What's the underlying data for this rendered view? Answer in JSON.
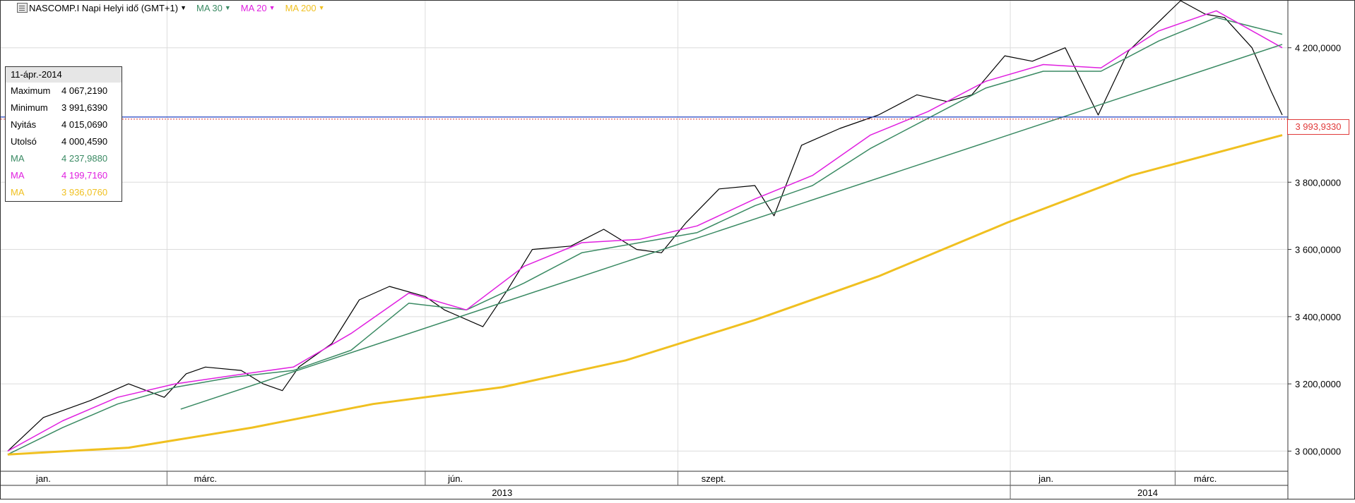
{
  "header": {
    "symbol": "NASCOMP.I Napi Helyi idő (GMT+1)",
    "indicators": [
      {
        "label": "MA 30",
        "color": "#3a8a63"
      },
      {
        "label": "MA 20",
        "color": "#e020e0"
      },
      {
        "label": "MA 200",
        "color": "#f0c020"
      }
    ]
  },
  "infobox": {
    "date": "11-ápr.-2014",
    "rows": [
      {
        "label": "Maximum",
        "value": "4 067,2190"
      },
      {
        "label": "Minimum",
        "value": "3 991,6390"
      },
      {
        "label": "Nyitás",
        "value": "4 015,0690"
      },
      {
        "label": "Utolsó",
        "value": "4 000,4590"
      },
      {
        "label": "MA",
        "value": "4 237,9880",
        "color": "#3a8a63"
      },
      {
        "label": "MA",
        "value": "4 199,7160",
        "color": "#e020e0"
      },
      {
        "label": "MA",
        "value": "3 936,0760",
        "color": "#f0c020"
      }
    ]
  },
  "last_price_label": "3 993,9330",
  "chart_data": {
    "type": "line",
    "y_axis": {
      "range": [
        2940,
        4340
      ],
      "ticks": [
        3000,
        3200,
        3400,
        3600,
        3800,
        4200
      ],
      "tick_labels": [
        "3 000,0000",
        "3 200,0000",
        "3 400,0000",
        "3 600,0000",
        "3 800,0000",
        "4 200,0000"
      ],
      "position": "right"
    },
    "x_axis": {
      "start": "2013-01-01",
      "end": "2014-04-11",
      "month_labels": [
        {
          "date": "2013-01-15",
          "label": "jan."
        },
        {
          "date": "2013-03-15",
          "label": "márc."
        },
        {
          "date": "2013-06-14",
          "label": "jún."
        },
        {
          "date": "2013-09-16",
          "label": "szept."
        },
        {
          "date": "2014-01-15",
          "label": "jan."
        },
        {
          "date": "2014-03-14",
          "label": "márc."
        }
      ],
      "year_labels": [
        {
          "date": "2013-07-01",
          "label": "2013"
        },
        {
          "date": "2014-02-21",
          "label": "2014"
        }
      ],
      "gridlines": [
        "2013-03-01",
        "2013-06-03",
        "2013-09-03",
        "2014-01-02",
        "2014-03-03"
      ]
    },
    "grid": true,
    "legend": "top-left",
    "series": [
      {
        "name": "NASCOMP.I",
        "color": "#000000",
        "x": [
          "2013-01-02",
          "2013-01-15",
          "2013-02-01",
          "2013-02-15",
          "2013-02-28",
          "2013-03-08",
          "2013-03-15",
          "2013-03-28",
          "2013-04-05",
          "2013-04-12",
          "2013-04-18",
          "2013-04-30",
          "2013-05-10",
          "2013-05-21",
          "2013-06-03",
          "2013-06-10",
          "2013-06-24",
          "2013-07-03",
          "2013-07-12",
          "2013-07-26",
          "2013-08-07",
          "2013-08-19",
          "2013-08-28",
          "2013-09-06",
          "2013-09-18",
          "2013-10-01",
          "2013-10-08",
          "2013-10-18",
          "2013-11-01",
          "2013-11-15",
          "2013-11-29",
          "2013-12-10",
          "2013-12-19",
          "2013-12-31",
          "2014-01-10",
          "2014-01-22",
          "2014-02-03",
          "2014-02-14",
          "2014-03-05",
          "2014-03-14",
          "2014-03-21",
          "2014-03-31",
          "2014-04-07",
          "2014-04-11"
        ],
        "values": [
          3000,
          3100,
          3150,
          3200,
          3160,
          3230,
          3250,
          3240,
          3200,
          3180,
          3250,
          3320,
          3450,
          3490,
          3460,
          3420,
          3370,
          3480,
          3600,
          3610,
          3660,
          3600,
          3590,
          3680,
          3780,
          3790,
          3700,
          3910,
          3960,
          4000,
          4060,
          4040,
          4060,
          4176,
          4160,
          4200,
          4000,
          4190,
          4340,
          4300,
          4290,
          4200,
          4070,
          4000
        ]
      },
      {
        "name": "MA 30",
        "color": "#3a8a63",
        "x": [
          "2013-01-02",
          "2013-01-22",
          "2013-02-11",
          "2013-03-04",
          "2013-03-25",
          "2013-04-16",
          "2013-05-07",
          "2013-05-28",
          "2013-06-18",
          "2013-07-09",
          "2013-07-30",
          "2013-08-20",
          "2013-09-10",
          "2013-10-01",
          "2013-10-22",
          "2013-11-12",
          "2013-12-03",
          "2013-12-24",
          "2014-01-14",
          "2014-02-04",
          "2014-02-25",
          "2014-03-18",
          "2014-04-11"
        ],
        "values": [
          2990,
          3070,
          3140,
          3190,
          3220,
          3240,
          3300,
          3440,
          3420,
          3500,
          3590,
          3620,
          3650,
          3730,
          3790,
          3900,
          3990,
          4080,
          4130,
          4130,
          4220,
          4290,
          4240
        ]
      },
      {
        "name": "MA 20",
        "color": "#e020e0",
        "x": [
          "2013-01-02",
          "2013-01-22",
          "2013-02-11",
          "2013-03-04",
          "2013-03-25",
          "2013-04-16",
          "2013-05-07",
          "2013-05-28",
          "2013-06-18",
          "2013-07-09",
          "2013-07-30",
          "2013-08-20",
          "2013-09-10",
          "2013-10-01",
          "2013-10-22",
          "2013-11-12",
          "2013-12-03",
          "2013-12-24",
          "2014-01-14",
          "2014-02-04",
          "2014-02-25",
          "2014-03-18",
          "2014-04-11"
        ],
        "values": [
          3000,
          3090,
          3160,
          3200,
          3225,
          3250,
          3350,
          3470,
          3420,
          3550,
          3620,
          3630,
          3670,
          3750,
          3820,
          3940,
          4010,
          4100,
          4150,
          4140,
          4250,
          4310,
          4200
        ]
      },
      {
        "name": "MA 200",
        "color": "#f0c020",
        "x": [
          "2013-01-02",
          "2013-02-15",
          "2013-04-01",
          "2013-05-15",
          "2013-07-01",
          "2013-08-15",
          "2013-10-01",
          "2013-11-15",
          "2014-01-01",
          "2014-02-15",
          "2014-04-11"
        ],
        "values": [
          2990,
          3010,
          3070,
          3140,
          3190,
          3270,
          3390,
          3520,
          3680,
          3820,
          3940
        ]
      },
      {
        "name": "Trendline",
        "color": "#3a8a63",
        "x": [
          "2013-03-06",
          "2014-04-11"
        ],
        "values": [
          3125,
          4210
        ]
      }
    ],
    "horizontal_line": {
      "value": 3993.933,
      "color": "#2040c0"
    }
  }
}
